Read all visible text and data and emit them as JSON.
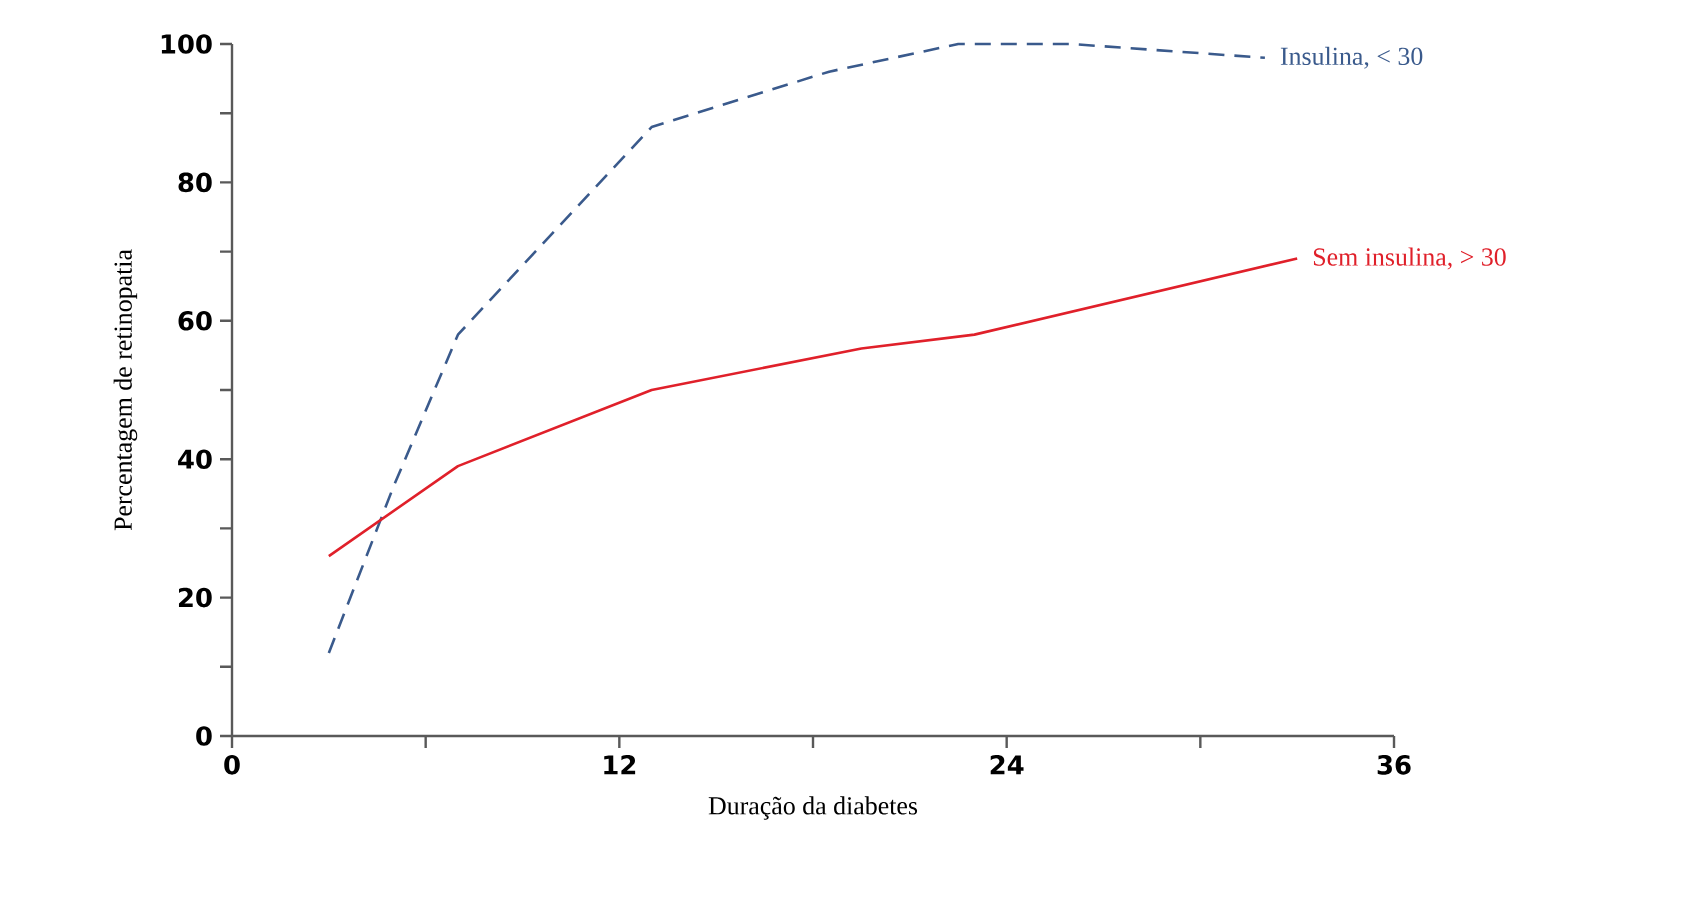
{
  "chart_data": {
    "type": "line",
    "xlabel": "Duração da diabetes",
    "ylabel": "Percentagem de retinopatia",
    "xlim": [
      0,
      36
    ],
    "ylim": [
      0,
      100
    ],
    "xticks": [
      0,
      {
        "value": 6,
        "label": null
      },
      12,
      {
        "value": 18,
        "label": null
      },
      24,
      {
        "value": 30,
        "label": null
      },
      36
    ],
    "yticks": [
      0,
      {
        "value": 10,
        "label": null
      },
      20,
      {
        "value": 30,
        "label": null
      },
      40,
      {
        "value": 50,
        "label": null
      },
      60,
      {
        "value": 70,
        "label": null
      },
      80,
      {
        "value": 90,
        "label": null
      },
      100
    ],
    "grid": false,
    "marker": "none",
    "series": [
      {
        "name": "Insulina, < 30",
        "color": "#3a5a8c",
        "line_style": "dashed",
        "x": [
          3,
          5,
          7,
          13,
          18.5,
          22.5,
          26,
          32
        ],
        "values": [
          12,
          36,
          58,
          88,
          96,
          100,
          100,
          98
        ]
      },
      {
        "name": "Sem insulina, > 30",
        "color": "#e0202a",
        "line_style": "solid",
        "x": [
          3,
          7,
          13,
          19.5,
          23,
          33
        ],
        "values": [
          26,
          39,
          50,
          56,
          58,
          69
        ]
      }
    ]
  }
}
